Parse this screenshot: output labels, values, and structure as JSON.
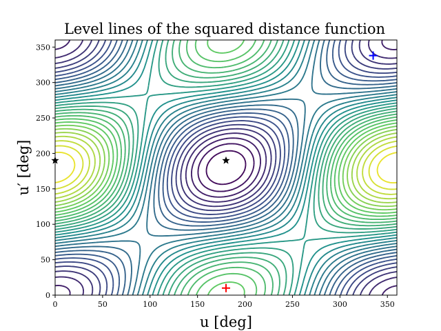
{
  "chart_data": {
    "type": "contour",
    "title": "Level lines of the squared distance function",
    "xlabel": "u [deg]",
    "ylabel": "u′ [deg]",
    "xlim": [
      0,
      360
    ],
    "ylim": [
      0,
      360
    ],
    "xticks": [
      0,
      50,
      100,
      150,
      200,
      250,
      300,
      350
    ],
    "yticks": [
      0,
      50,
      100,
      150,
      200,
      250,
      300,
      350
    ],
    "grid": false,
    "colormap": [
      "#440154",
      "#3b528b",
      "#21918c",
      "#5ec962",
      "#fde725"
    ],
    "levels": 32,
    "markers": [
      {
        "type": "plus",
        "color": "#ff0000",
        "x": 180,
        "y": 10
      },
      {
        "type": "plus",
        "color": "#0000ff",
        "x": 335,
        "y": 338
      },
      {
        "type": "star",
        "color": "#000000",
        "x": 180,
        "y": 190
      },
      {
        "type": "star",
        "color": "#000000",
        "x": 0,
        "y": 190
      }
    ]
  }
}
